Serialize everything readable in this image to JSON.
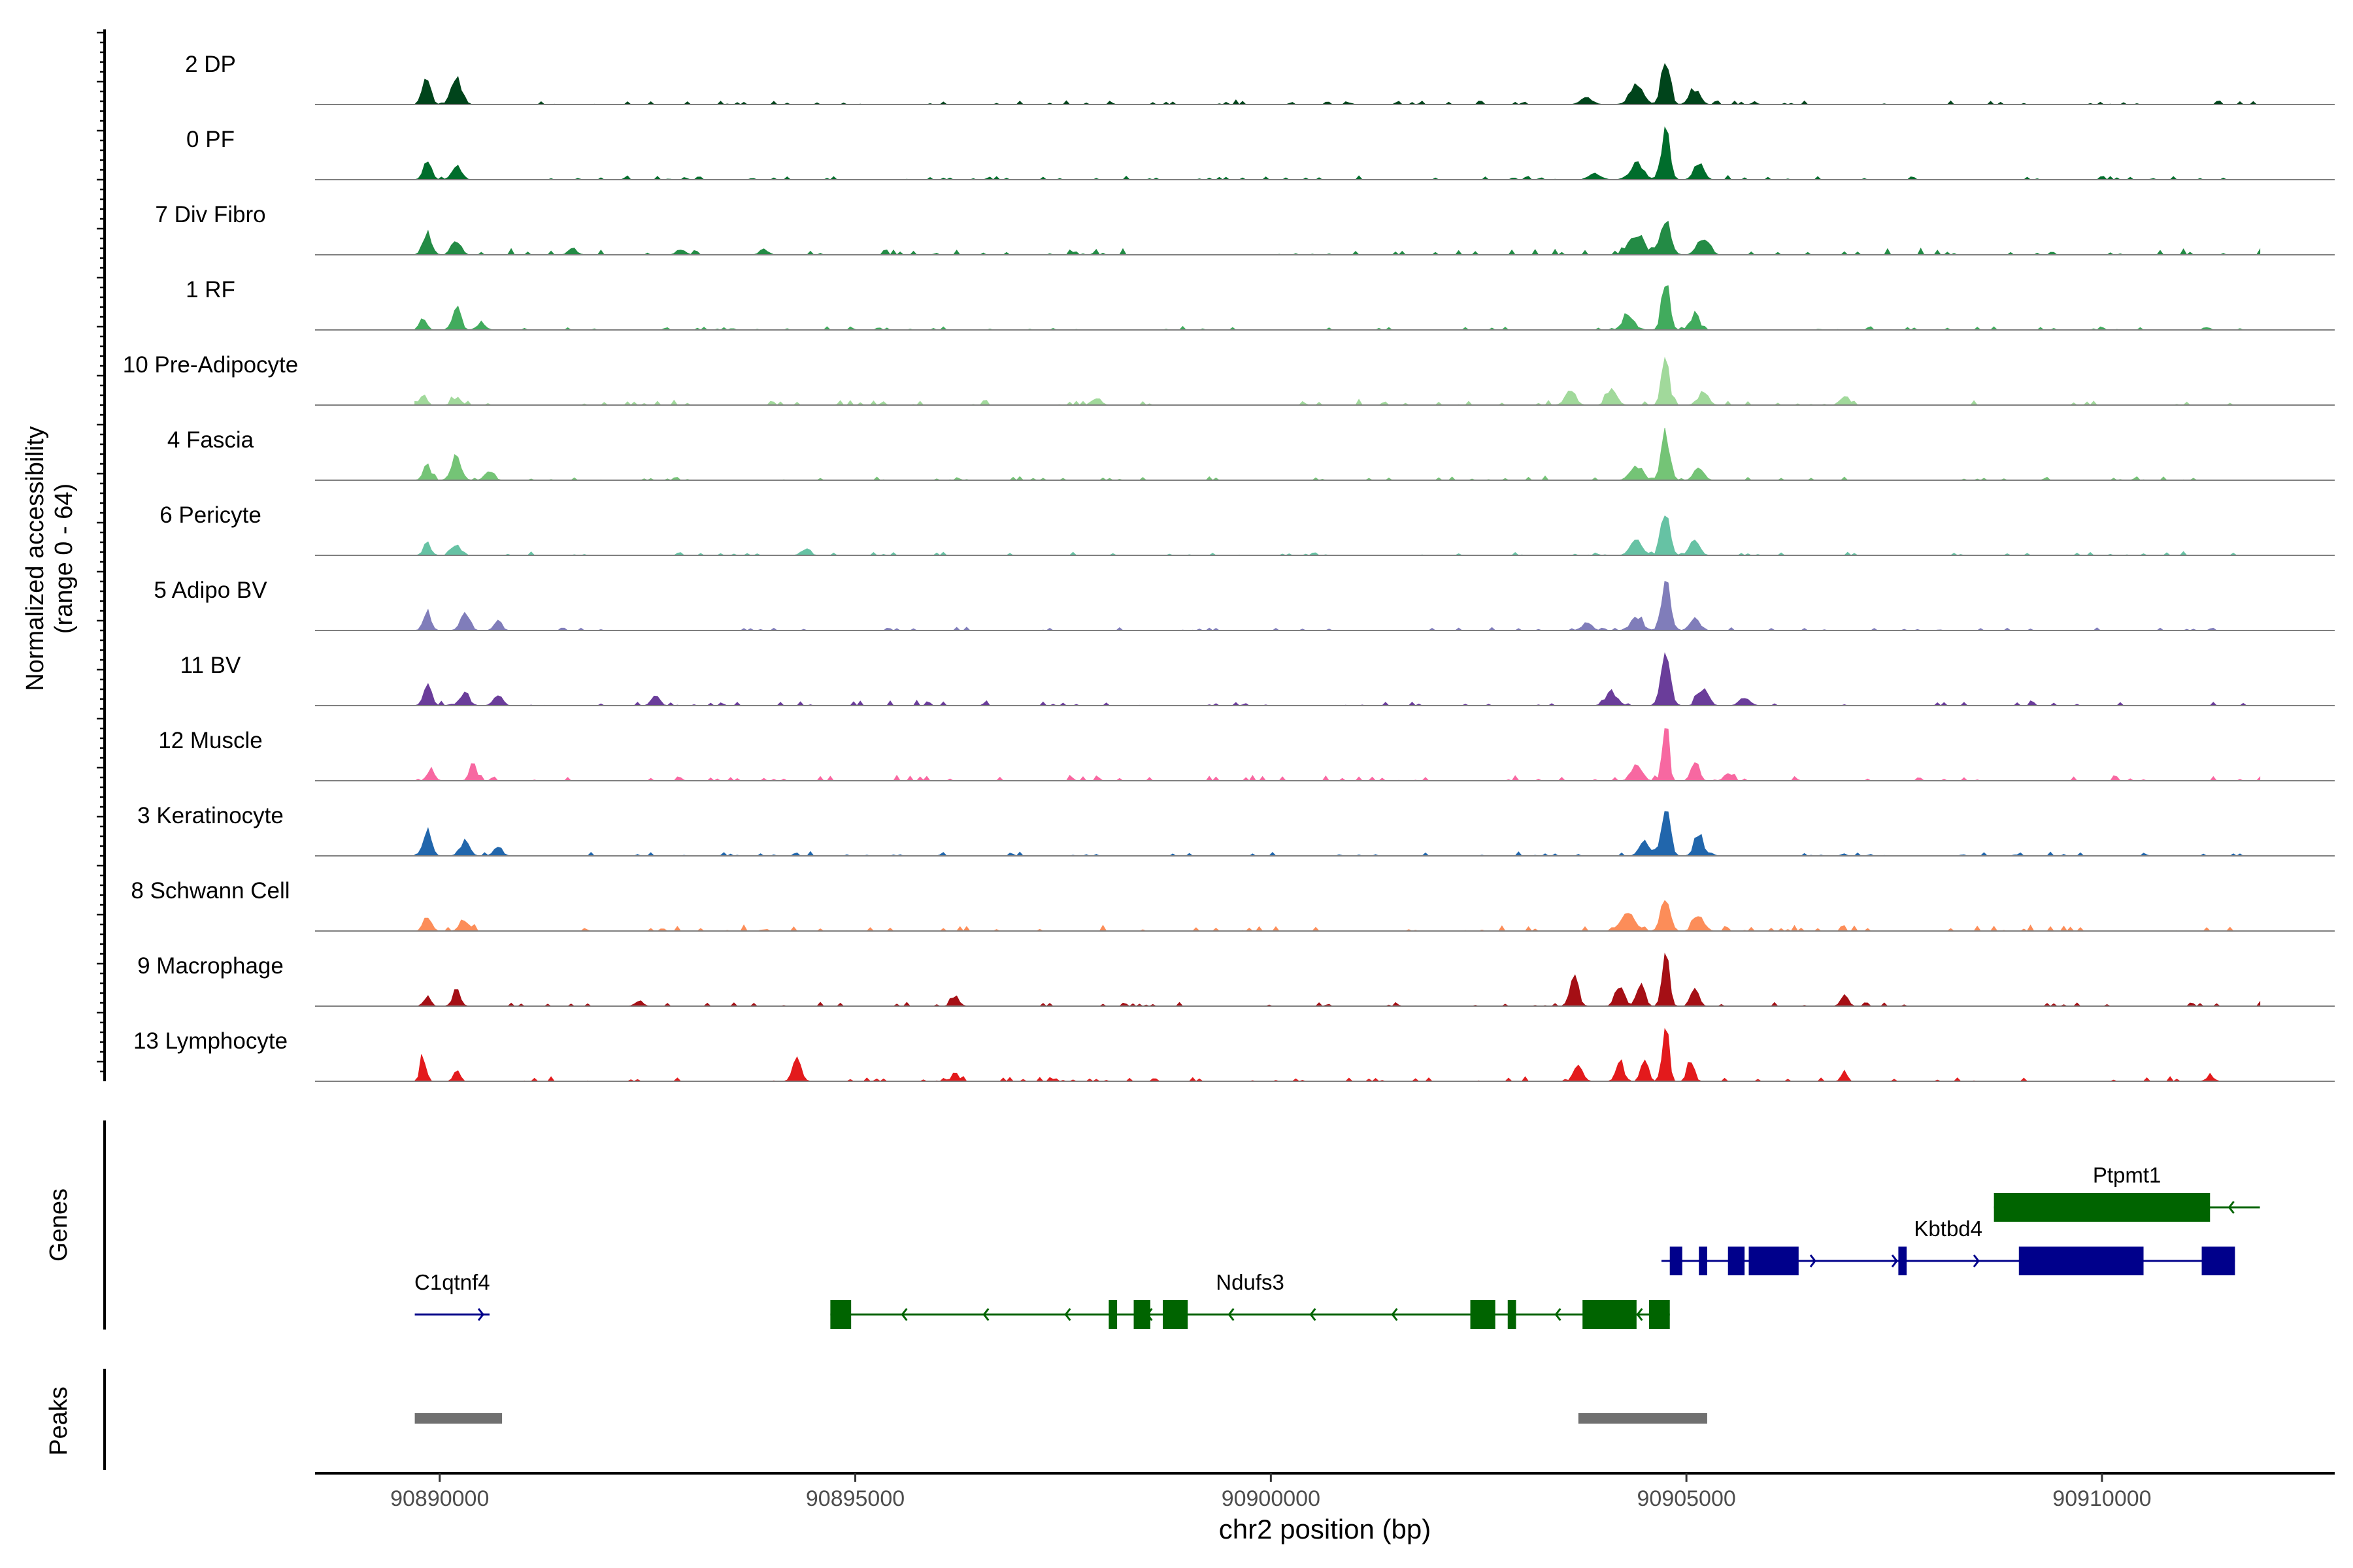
{
  "chart_data": {
    "type": "coverage-track",
    "region": {
      "chrom": "chr2",
      "start": 90888500,
      "end": 90912800
    },
    "xlabel": "chr2 position (bp)",
    "xticks": [
      90890000,
      90895000,
      90900000,
      90905000,
      90910000
    ],
    "ylabel_line1": "Normalized accessibility",
    "ylabel_line2": "(range 0 - 64)",
    "yrange": [
      0,
      64
    ],
    "genes_label": "Genes",
    "peaks_label": "Peaks",
    "tracks": [
      {
        "name": "2 DP",
        "color": "#00441B",
        "seed": 1,
        "bg": 0.22,
        "peaks": [
          [
            90889850,
            45,
            0.55
          ],
          [
            90890200,
            60,
            0.5
          ],
          [
            90903800,
            70,
            0.12
          ],
          [
            90904400,
            80,
            0.35
          ],
          [
            90904750,
            50,
            1.0
          ],
          [
            90905100,
            60,
            0.32
          ]
        ]
      },
      {
        "name": "0 PF",
        "color": "#006D2C",
        "seed": 2,
        "bg": 0.2,
        "peaks": [
          [
            90889850,
            45,
            0.38
          ],
          [
            90890200,
            55,
            0.3
          ],
          [
            90903900,
            70,
            0.12
          ],
          [
            90904400,
            80,
            0.3
          ],
          [
            90904750,
            50,
            0.95
          ],
          [
            90905150,
            60,
            0.3
          ]
        ]
      },
      {
        "name": "7 Div Fibro",
        "color": "#238B45",
        "seed": 3,
        "bg": 0.3,
        "peaks": [
          [
            90889850,
            50,
            0.4
          ],
          [
            90890200,
            55,
            0.3
          ],
          [
            90891600,
            50,
            0.12
          ],
          [
            90892900,
            50,
            0.1
          ],
          [
            90893900,
            50,
            0.1
          ],
          [
            90904400,
            90,
            0.38
          ],
          [
            90904750,
            60,
            0.7
          ],
          [
            90905200,
            70,
            0.32
          ]
        ]
      },
      {
        "name": "1 RF",
        "color": "#41AB5D",
        "seed": 4,
        "bg": 0.18,
        "peaks": [
          [
            90889800,
            40,
            0.25
          ],
          [
            90890200,
            50,
            0.42
          ],
          [
            90890500,
            50,
            0.15
          ],
          [
            90904300,
            60,
            0.35
          ],
          [
            90904750,
            45,
            1.0
          ],
          [
            90905100,
            55,
            0.3
          ]
        ]
      },
      {
        "name": "10 Pre-Adipocyte",
        "color": "#A1D99B",
        "seed": 5,
        "bg": 0.28,
        "peaks": [
          [
            90889800,
            40,
            0.22
          ],
          [
            90890200,
            50,
            0.14
          ],
          [
            90897900,
            50,
            0.15
          ],
          [
            90903600,
            60,
            0.3
          ],
          [
            90904100,
            60,
            0.28
          ],
          [
            90904750,
            45,
            0.88
          ],
          [
            90905200,
            60,
            0.25
          ],
          [
            90906900,
            50,
            0.18
          ]
        ]
      },
      {
        "name": "4 Fascia",
        "color": "#74C476",
        "seed": 6,
        "bg": 0.2,
        "peaks": [
          [
            90889850,
            45,
            0.3
          ],
          [
            90890200,
            55,
            0.52
          ],
          [
            90890600,
            50,
            0.22
          ],
          [
            90904400,
            70,
            0.3
          ],
          [
            90904750,
            50,
            0.95
          ],
          [
            90905150,
            55,
            0.28
          ]
        ]
      },
      {
        "name": "6 Pericyte",
        "color": "#66C2A4",
        "seed": 7,
        "bg": 0.18,
        "peaks": [
          [
            90889850,
            45,
            0.24
          ],
          [
            90890200,
            55,
            0.2
          ],
          [
            90894400,
            50,
            0.12
          ],
          [
            90904400,
            70,
            0.3
          ],
          [
            90904750,
            50,
            0.9
          ],
          [
            90905100,
            55,
            0.3
          ]
        ]
      },
      {
        "name": "5 Adipo BV",
        "color": "#807DBA",
        "seed": 8,
        "bg": 0.16,
        "peaks": [
          [
            90889850,
            45,
            0.36
          ],
          [
            90890300,
            55,
            0.3
          ],
          [
            90890700,
            45,
            0.18
          ],
          [
            90903800,
            60,
            0.14
          ],
          [
            90904400,
            70,
            0.26
          ],
          [
            90904750,
            50,
            1.0
          ],
          [
            90905100,
            55,
            0.26
          ]
        ]
      },
      {
        "name": "11 BV",
        "color": "#6A3D9A",
        "seed": 9,
        "bg": 0.25,
        "peaks": [
          [
            90889850,
            45,
            0.45
          ],
          [
            90890300,
            55,
            0.25
          ],
          [
            90890700,
            50,
            0.22
          ],
          [
            90892600,
            45,
            0.25
          ],
          [
            90904100,
            70,
            0.25
          ],
          [
            90904750,
            55,
            1.0
          ],
          [
            90905200,
            60,
            0.35
          ],
          [
            90905700,
            60,
            0.15
          ]
        ]
      },
      {
        "name": "12 Muscle",
        "color": "#F768A1",
        "seed": 10,
        "bg": 0.3,
        "peaks": [
          [
            90889900,
            40,
            0.25
          ],
          [
            90890400,
            40,
            0.35
          ],
          [
            90904400,
            60,
            0.35
          ],
          [
            90904750,
            35,
            1.35
          ],
          [
            90905100,
            45,
            0.4
          ],
          [
            90905500,
            45,
            0.18
          ]
        ]
      },
      {
        "name": "3 Keratinocyte",
        "color": "#2166AC",
        "seed": 11,
        "bg": 0.2,
        "peaks": [
          [
            90889850,
            50,
            0.48
          ],
          [
            90890300,
            55,
            0.28
          ],
          [
            90890700,
            50,
            0.18
          ],
          [
            90904500,
            60,
            0.3
          ],
          [
            90904750,
            50,
            1.05
          ],
          [
            90905150,
            55,
            0.4
          ]
        ]
      },
      {
        "name": "8 Schwann Cell",
        "color": "#FC8D59",
        "seed": 12,
        "bg": 0.3,
        "peaks": [
          [
            90889850,
            45,
            0.3
          ],
          [
            90890300,
            55,
            0.22
          ],
          [
            90904300,
            90,
            0.3
          ],
          [
            90904750,
            50,
            0.75
          ],
          [
            90905150,
            60,
            0.3
          ]
        ]
      },
      {
        "name": "9 Macrophage",
        "color": "#A50F15",
        "seed": 13,
        "bg": 0.22,
        "peaks": [
          [
            90889850,
            40,
            0.18
          ],
          [
            90890200,
            45,
            0.3
          ],
          [
            90892400,
            45,
            0.12
          ],
          [
            90896200,
            45,
            0.22
          ],
          [
            90903650,
            50,
            0.55
          ],
          [
            90904200,
            50,
            0.45
          ],
          [
            90904450,
            45,
            0.5
          ],
          [
            90904750,
            40,
            1.1
          ],
          [
            90905100,
            45,
            0.35
          ],
          [
            90906900,
            45,
            0.2
          ]
        ]
      },
      {
        "name": "13 Lymphocyte",
        "color": "#E31A1C",
        "seed": 14,
        "bg": 0.22,
        "peaks": [
          [
            90889800,
            35,
            0.45
          ],
          [
            90890200,
            35,
            0.2
          ],
          [
            90894300,
            50,
            0.4
          ],
          [
            90896200,
            35,
            0.22
          ],
          [
            90903700,
            50,
            0.35
          ],
          [
            90904200,
            45,
            0.4
          ],
          [
            90904500,
            40,
            0.5
          ],
          [
            90904750,
            35,
            1.35
          ],
          [
            90905050,
            40,
            0.4
          ],
          [
            90906900,
            35,
            0.18
          ],
          [
            90911300,
            40,
            0.12
          ]
        ]
      }
    ],
    "genes": [
      {
        "name": "C1qtnf4",
        "strand": "+",
        "row": 2,
        "color": "#00008B",
        "start": 90889700,
        "end": 90890600,
        "exons": []
      },
      {
        "name": "Ndufs3",
        "strand": "-",
        "row": 2,
        "color": "#006400",
        "start": 90894700,
        "end": 90904800,
        "exons": [
          [
            90894700,
            90894950
          ],
          [
            90898050,
            90898150
          ],
          [
            90898350,
            90898550
          ],
          [
            90898700,
            90899000
          ],
          [
            90902400,
            90902700
          ],
          [
            90902850,
            90902950
          ],
          [
            90903750,
            90904400
          ],
          [
            90904550,
            90904800
          ]
        ]
      },
      {
        "name": "Kbtbd4",
        "strand": "+",
        "row": 1,
        "color": "#00008B",
        "start": 90904700,
        "end": 90911600,
        "exons": [
          [
            90904800,
            90904950
          ],
          [
            90905150,
            90905250
          ],
          [
            90905500,
            90905700
          ],
          [
            90905750,
            90906350
          ],
          [
            90907550,
            90907650
          ],
          [
            90909000,
            90910500
          ],
          [
            90911200,
            90911600
          ]
        ]
      },
      {
        "name": "Ptpmt1",
        "strand": "-",
        "row": 0,
        "color": "#006400",
        "start": 90908700,
        "end": 90911900,
        "exons": [
          [
            90908700,
            90911300
          ]
        ]
      }
    ],
    "peaks": [
      [
        90889700,
        90890750
      ],
      [
        90903700,
        90905250
      ]
    ]
  }
}
